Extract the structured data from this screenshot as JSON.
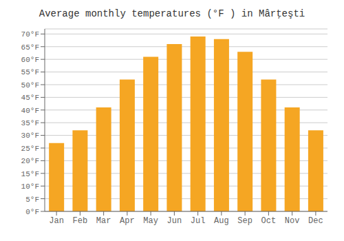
{
  "chart_data": {
    "type": "bar",
    "title": "Average monthly temperatures (°F ) in Mârţeşti",
    "categories": [
      "Jan",
      "Feb",
      "Mar",
      "Apr",
      "May",
      "Jun",
      "Jul",
      "Aug",
      "Sep",
      "Oct",
      "Nov",
      "Dec"
    ],
    "values": [
      27,
      32,
      41,
      52,
      61,
      66,
      69,
      68,
      63,
      52,
      41,
      32
    ],
    "color": "#F5A623",
    "ylim": [
      0,
      72
    ],
    "yticks": [
      {
        "value": 0,
        "label": "0°F"
      },
      {
        "value": 5,
        "label": "5°F"
      },
      {
        "value": 10,
        "label": "10°F"
      },
      {
        "value": 15,
        "label": "15°F"
      },
      {
        "value": 20,
        "label": "20°F"
      },
      {
        "value": 25,
        "label": "25°F"
      },
      {
        "value": 30,
        "label": "30°F"
      },
      {
        "value": 35,
        "label": "35°F"
      },
      {
        "value": 40,
        "label": "40°F"
      },
      {
        "value": 45,
        "label": "45°F"
      },
      {
        "value": 50,
        "label": "50°F"
      },
      {
        "value": 55,
        "label": "55°F"
      },
      {
        "value": 60,
        "label": "60°F"
      },
      {
        "value": 65,
        "label": "65°F"
      },
      {
        "value": 70,
        "label": "70°F"
      }
    ],
    "grid": true
  }
}
